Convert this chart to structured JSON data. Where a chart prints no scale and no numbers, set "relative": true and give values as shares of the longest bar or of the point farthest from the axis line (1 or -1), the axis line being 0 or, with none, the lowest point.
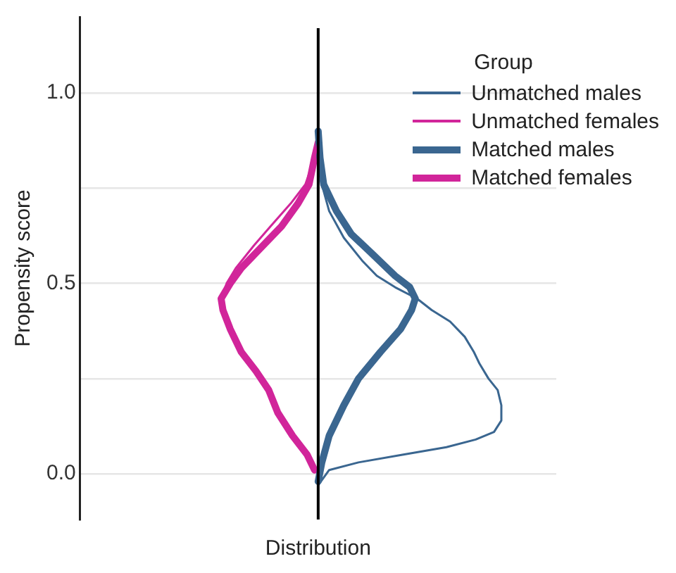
{
  "chart_data": {
    "type": "line",
    "orientation": "horizontal",
    "relative": true,
    "xlabel": "Distribution",
    "ylabel": "Propensity score",
    "legend_title": "Group",
    "legend": "top right",
    "grid": "y",
    "marker": "none",
    "line_style": "solid",
    "ylim": [
      -0.12,
      1.2
    ],
    "yticks": [
      {
        "value": 0,
        "label": "0.0"
      },
      {
        "value": 0.25,
        "label": null
      },
      {
        "value": 0.5,
        "label": "0.5"
      },
      {
        "value": 0.75,
        "label": null
      },
      {
        "value": 1,
        "label": "1.0"
      }
    ],
    "series": [
      {
        "name": "Unmatched males",
        "color": "#3a6690",
        "values": [
          0,
          0.06,
          0.22,
          0.46,
          0.7,
          0.86,
          0.96,
          1,
          1,
          0.98,
          0.93,
          0.88,
          0.85,
          0.8,
          0.72,
          0.62,
          0.54,
          0.42,
          0.32,
          0.24,
          0.14,
          0.06,
          0.02,
          0.01,
          0
        ],
        "x": [
          -0.03,
          0.01,
          0.03,
          0.05,
          0.07,
          0.09,
          0.11,
          0.14,
          0.18,
          0.22,
          0.25,
          0.29,
          0.32,
          0.36,
          0.4,
          0.43,
          0.46,
          0.49,
          0.52,
          0.56,
          0.62,
          0.69,
          0.76,
          0.83,
          0.9
        ]
      },
      {
        "name": "Unmatched females",
        "color": "#d1259a",
        "values": [
          -0.02,
          -0.06,
          -0.14,
          -0.22,
          -0.27,
          -0.34,
          -0.42,
          -0.48,
          -0.52,
          -0.53,
          -0.5,
          -0.45,
          -0.35,
          -0.26,
          -0.15,
          -0.07,
          -0.02,
          0
        ],
        "x": [
          0.01,
          0.05,
          0.1,
          0.16,
          0.22,
          0.27,
          0.32,
          0.38,
          0.43,
          0.46,
          0.5,
          0.54,
          0.6,
          0.65,
          0.71,
          0.76,
          0.83,
          0.87
        ]
      },
      {
        "name": "Matched males",
        "color": "#3a6690",
        "values": [
          0,
          0.02,
          0.06,
          0.14,
          0.22,
          0.34,
          0.45,
          0.51,
          0.53,
          0.5,
          0.42,
          0.29,
          0.18,
          0.1,
          0.03,
          0.01,
          0
        ],
        "x": [
          -0.02,
          0.03,
          0.1,
          0.18,
          0.25,
          0.32,
          0.38,
          0.43,
          0.46,
          0.49,
          0.52,
          0.58,
          0.63,
          0.69,
          0.76,
          0.83,
          0.9
        ]
      },
      {
        "name": "Matched females",
        "color": "#d1259a",
        "values": [
          -0.02,
          -0.06,
          -0.14,
          -0.22,
          -0.27,
          -0.34,
          -0.42,
          -0.48,
          -0.52,
          -0.53,
          -0.48,
          -0.42,
          -0.3,
          -0.2,
          -0.11,
          -0.05,
          -0.02,
          0
        ],
        "x": [
          0.01,
          0.05,
          0.1,
          0.16,
          0.22,
          0.27,
          0.32,
          0.38,
          0.43,
          0.46,
          0.5,
          0.54,
          0.6,
          0.65,
          0.71,
          0.76,
          0.83,
          0.87
        ]
      }
    ]
  }
}
